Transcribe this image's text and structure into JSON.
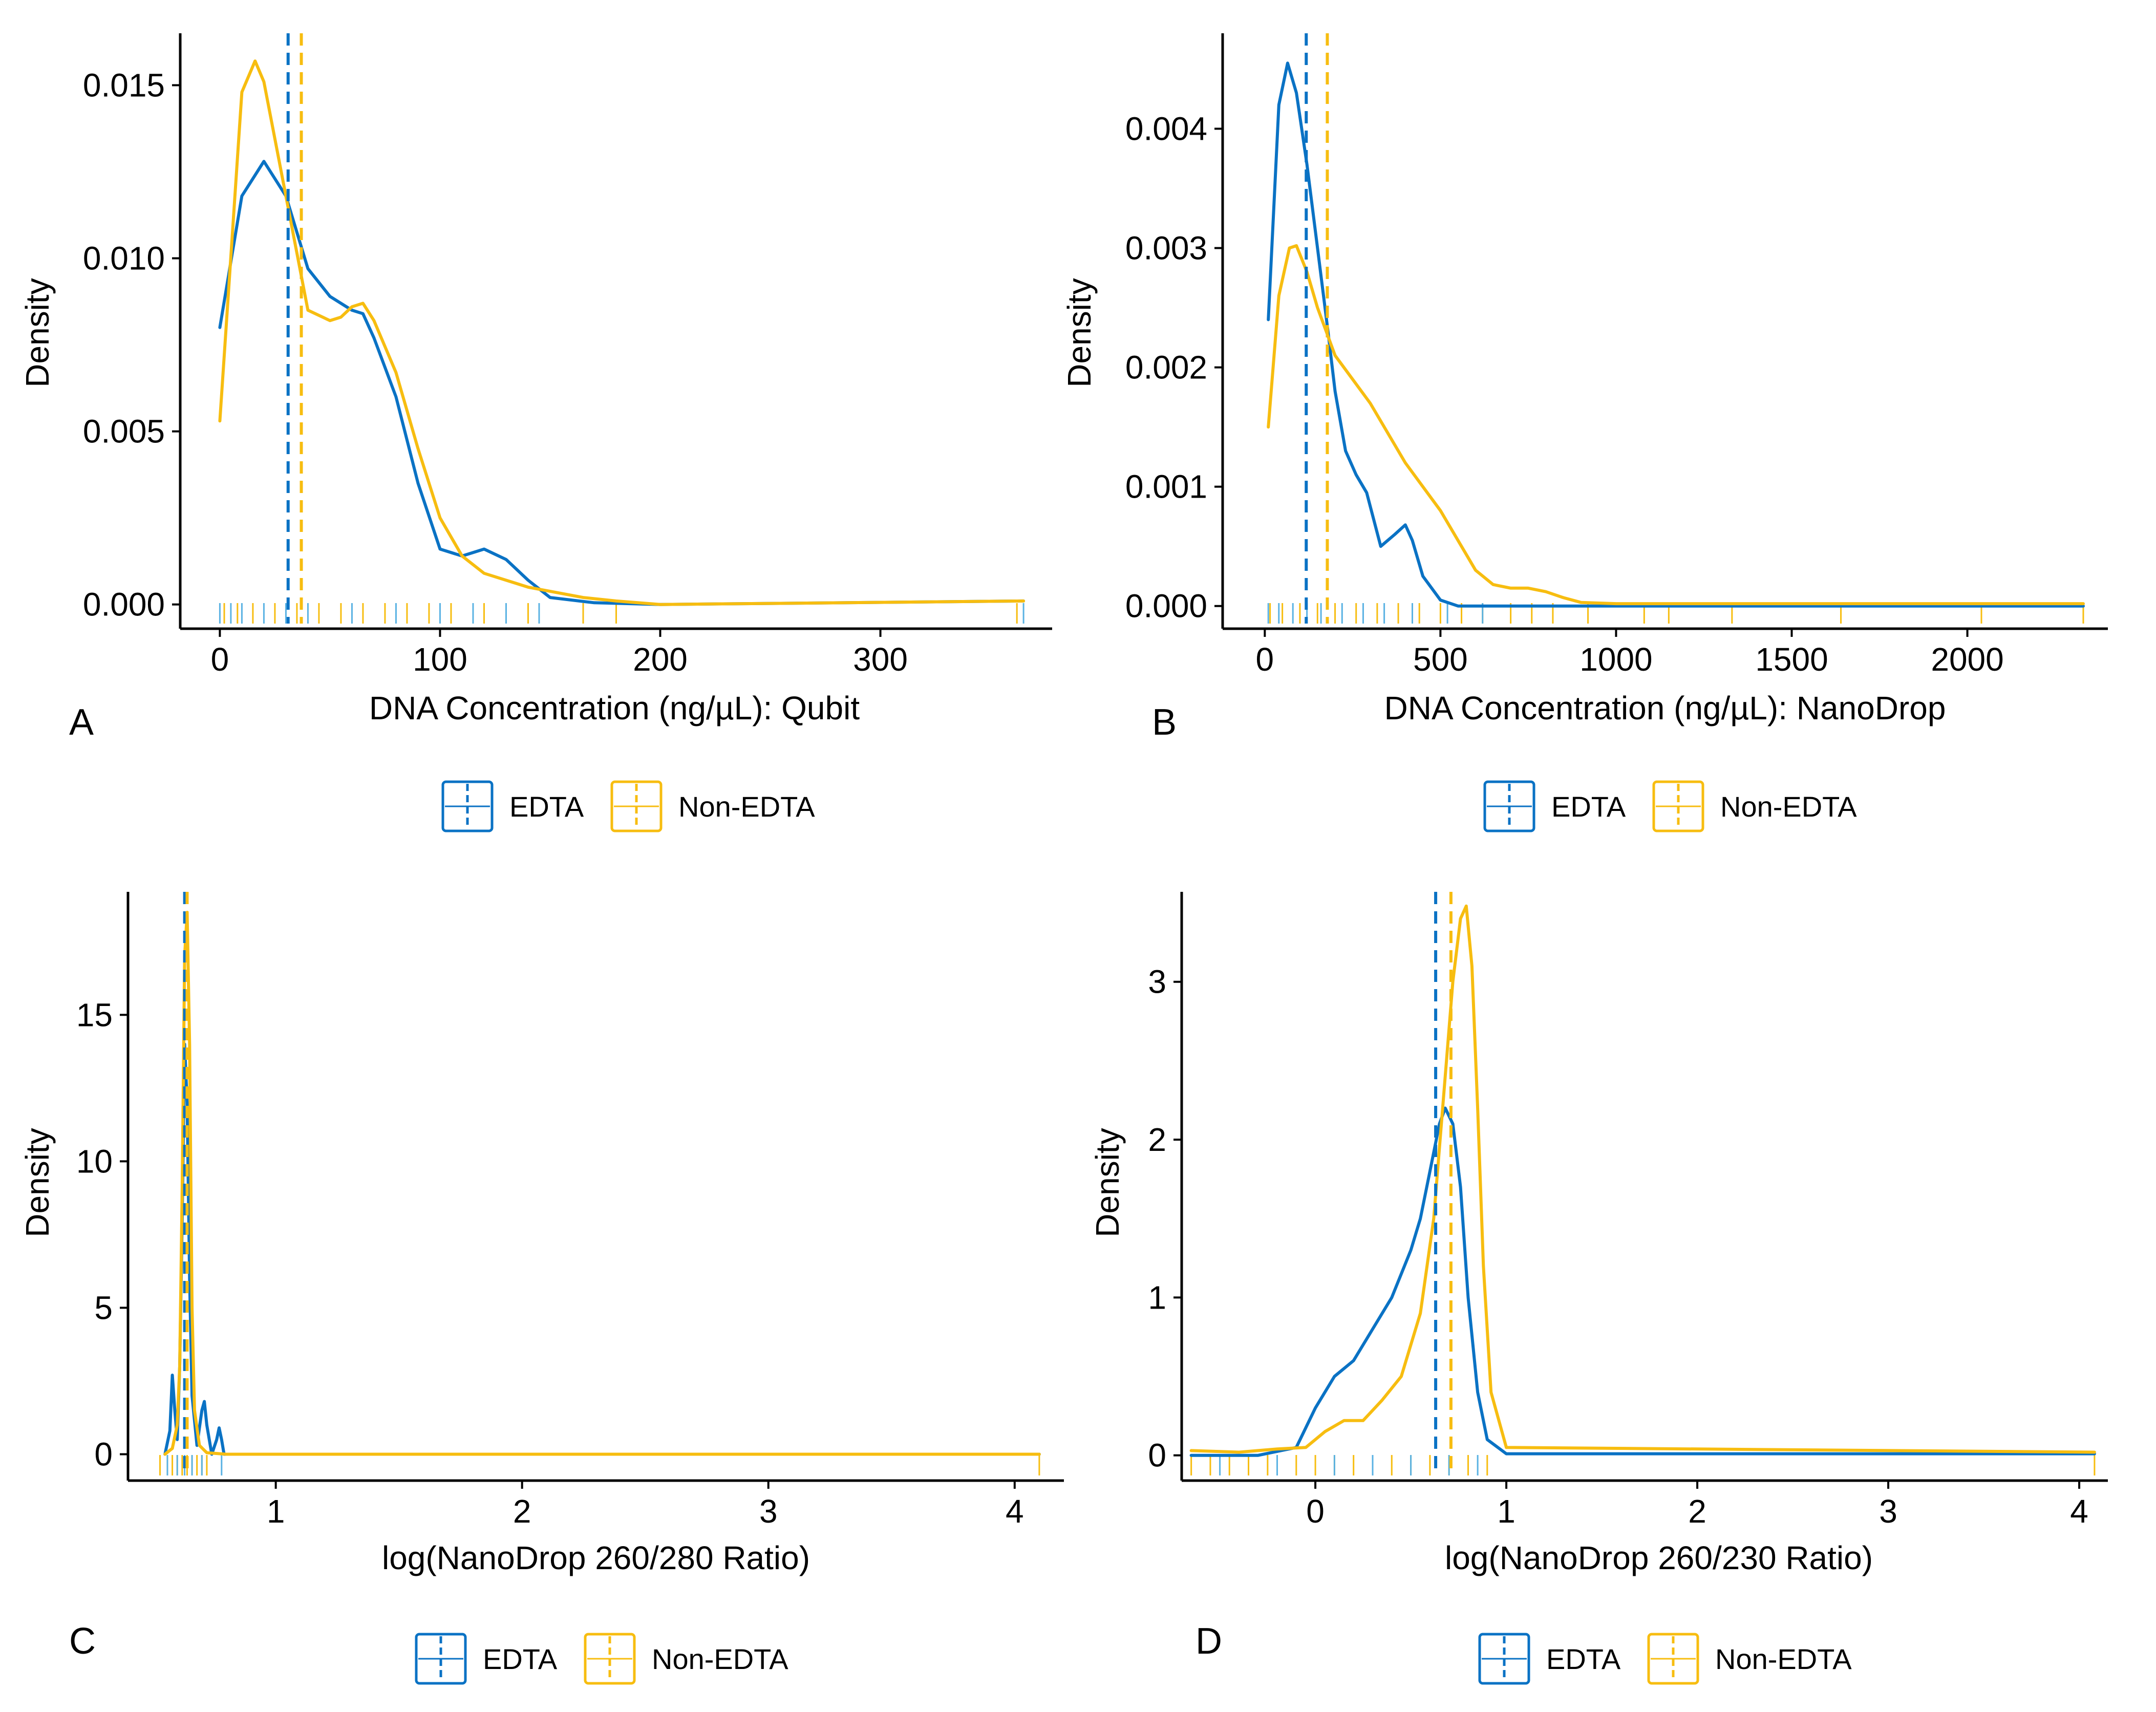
{
  "colors": {
    "edta": "#0a72c4",
    "non_edta": "#f7bd10",
    "edta_light": "#5ab2e3",
    "axis": "#000000"
  },
  "legend": {
    "edta_label": "EDTA",
    "non_edta_label": "Non-EDTA"
  },
  "chart_data": [
    {
      "panel": "A",
      "type": "line",
      "title": "",
      "xlabel": "DNA Concentration (ng/µL): Qubit",
      "ylabel": "Density",
      "xlim": [
        -18,
        378
      ],
      "ylim": [
        -0.0007,
        0.0165
      ],
      "x_ticks": [
        0,
        100,
        200,
        300
      ],
      "x_tick_labels": [
        "0",
        "100",
        "200",
        "300"
      ],
      "y_ticks": [
        0,
        0.005,
        0.01,
        0.015
      ],
      "y_tick_labels": [
        "0.000",
        "0.005",
        "0.010",
        "0.015"
      ],
      "series": [
        {
          "name": "EDTA",
          "color": "#0a72c4",
          "x": [
            0,
            10,
            20,
            30,
            40,
            50,
            60,
            65,
            70,
            80,
            90,
            100,
            110,
            120,
            130,
            140,
            150,
            170,
            200,
            365
          ],
          "y": [
            0.008,
            0.0118,
            0.0128,
            0.0118,
            0.0097,
            0.0089,
            0.0085,
            0.0084,
            0.0077,
            0.006,
            0.0035,
            0.0016,
            0.0014,
            0.0016,
            0.0013,
            0.0007,
            0.0002,
            5e-05,
            0.0,
            0.0001
          ]
        },
        {
          "name": "Non-EDTA",
          "color": "#f7bd10",
          "x": [
            0,
            10,
            16,
            20,
            30,
            40,
            50,
            55,
            60,
            65,
            70,
            80,
            90,
            100,
            110,
            120,
            140,
            165,
            180,
            200,
            365
          ],
          "y": [
            0.0053,
            0.0148,
            0.0157,
            0.0151,
            0.0118,
            0.0085,
            0.0082,
            0.0083,
            0.0086,
            0.0087,
            0.0082,
            0.0067,
            0.0045,
            0.0025,
            0.0014,
            0.0009,
            0.0005,
            0.0002,
            0.0001,
            0.0,
            0.0001
          ]
        }
      ],
      "mean_lines": [
        {
          "name": "EDTA",
          "x": 31
        },
        {
          "name": "Non-EDTA",
          "x": 37
        }
      ],
      "rug": {
        "edta_x": [
          0,
          5,
          10,
          20,
          30,
          40,
          60,
          80,
          100,
          115,
          130,
          145,
          365
        ],
        "non_edta_x": [
          2,
          8,
          15,
          25,
          35,
          45,
          55,
          65,
          75,
          85,
          95,
          105,
          120,
          140,
          165,
          180,
          362
        ]
      }
    },
    {
      "panel": "B",
      "type": "line",
      "title": "",
      "xlabel": "DNA Concentration (ng/µL): NanoDrop",
      "ylabel": "Density",
      "xlim": [
        -120,
        2400
      ],
      "ylim": [
        -0.00019,
        0.0048
      ],
      "x_ticks": [
        0,
        500,
        1000,
        1500,
        2000
      ],
      "x_tick_labels": [
        "0",
        "500",
        "1000",
        "1500",
        "2000"
      ],
      "y_ticks": [
        0,
        0.001,
        0.002,
        0.003,
        0.004
      ],
      "y_tick_labels": [
        "0.000",
        "0.001",
        "0.002",
        "0.003",
        "0.004"
      ],
      "series": [
        {
          "name": "EDTA",
          "color": "#0a72c4",
          "x": [
            10,
            40,
            65,
            90,
            120,
            150,
            180,
            200,
            230,
            260,
            290,
            330,
            370,
            400,
            420,
            450,
            500,
            550,
            600,
            2330
          ],
          "y": [
            0.0024,
            0.0042,
            0.00455,
            0.0043,
            0.0037,
            0.003,
            0.0023,
            0.0018,
            0.0013,
            0.0011,
            0.00095,
            0.0005,
            0.0006,
            0.00068,
            0.00055,
            0.00025,
            5e-05,
            0.0,
            0.0,
            0.0
          ]
        },
        {
          "name": "Non-EDTA",
          "color": "#f7bd10",
          "x": [
            10,
            40,
            70,
            90,
            120,
            150,
            200,
            300,
            400,
            500,
            600,
            650,
            700,
            750,
            800,
            850,
            900,
            1000,
            1500,
            2330
          ],
          "y": [
            0.0015,
            0.0026,
            0.003,
            0.00302,
            0.0028,
            0.0025,
            0.0021,
            0.0017,
            0.0012,
            0.0008,
            0.0003,
            0.00018,
            0.00015,
            0.00015,
            0.00012,
            7e-05,
            3e-05,
            2e-05,
            2e-05,
            2e-05
          ]
        }
      ],
      "mean_lines": [
        {
          "name": "EDTA",
          "x": 118
        },
        {
          "name": "Non-EDTA",
          "x": 178
        }
      ],
      "rug": {
        "edta_x": [
          10,
          40,
          80,
          120,
          160,
          220,
          280,
          340,
          420,
          520,
          620
        ],
        "non_edta_x": [
          15,
          50,
          100,
          150,
          200,
          260,
          320,
          380,
          440,
          500,
          560,
          620,
          700,
          760,
          820,
          920,
          1080,
          1150,
          1330,
          1640,
          2040,
          2330
        ]
      }
    },
    {
      "panel": "C",
      "type": "line",
      "title": "",
      "xlabel": "log(NanoDrop 260/280 Ratio)",
      "ylabel": "Density",
      "xlim": [
        0.4,
        4.2
      ],
      "ylim": [
        -0.9,
        19.2
      ],
      "x_ticks": [
        1,
        2,
        3,
        4
      ],
      "x_tick_labels": [
        "1",
        "2",
        "3",
        "4"
      ],
      "y_ticks": [
        0,
        5,
        10,
        15
      ],
      "y_tick_labels": [
        "0",
        "5",
        "10",
        "15"
      ],
      "series": [
        {
          "name": "EDTA",
          "color": "#0a72c4",
          "x": [
            0.55,
            0.57,
            0.58,
            0.59,
            0.6,
            0.61,
            0.62,
            0.63,
            0.64,
            0.65,
            0.66,
            0.68,
            0.7,
            0.71,
            0.72,
            0.74,
            0.76,
            0.77,
            0.78,
            0.79,
            0.8,
            4.1
          ],
          "y": [
            0.0,
            0.8,
            2.7,
            1.5,
            0.5,
            3.0,
            8.0,
            14.0,
            12.0,
            6.0,
            2.0,
            0.3,
            1.5,
            1.8,
            1.0,
            0.0,
            0.5,
            0.9,
            0.5,
            0.0,
            0.0,
            0.0
          ]
        },
        {
          "name": "Non-EDTA",
          "color": "#f7bd10",
          "x": [
            0.55,
            0.58,
            0.6,
            0.61,
            0.62,
            0.63,
            0.64,
            0.65,
            0.66,
            0.67,
            0.69,
            0.72,
            0.8,
            4.1
          ],
          "y": [
            0.0,
            0.2,
            1.0,
            3.0,
            9.0,
            17.0,
            18.5,
            14.0,
            5.0,
            1.5,
            0.3,
            0.05,
            0.0,
            0.0
          ]
        }
      ],
      "mean_lines": [
        {
          "name": "EDTA",
          "x": 0.63
        },
        {
          "name": "Non-EDTA",
          "x": 0.64
        }
      ],
      "rug": {
        "edta_x": [
          0.56,
          0.6,
          0.63,
          0.66,
          0.7,
          0.78
        ],
        "non_edta_x": [
          0.53,
          0.56,
          0.58,
          0.6,
          0.62,
          0.64,
          0.66,
          0.68,
          0.7,
          0.72,
          4.1
        ]
      }
    },
    {
      "panel": "D",
      "type": "line",
      "title": "",
      "xlabel": "log(NanoDrop 260/230 Ratio)",
      "ylabel": "Density",
      "xlim": [
        -0.7,
        4.15
      ],
      "ylim": [
        -0.16,
        3.57
      ],
      "x_ticks": [
        0,
        1,
        2,
        3,
        4
      ],
      "x_tick_labels": [
        "0",
        "1",
        "2",
        "3",
        "4"
      ],
      "y_ticks": [
        0,
        1,
        2,
        3
      ],
      "y_tick_labels": [
        "0",
        "1",
        "2",
        "3"
      ],
      "series": [
        {
          "name": "EDTA",
          "color": "#0a72c4",
          "x": [
            -0.65,
            -0.3,
            -0.1,
            0.0,
            0.1,
            0.2,
            0.3,
            0.4,
            0.5,
            0.55,
            0.6,
            0.65,
            0.68,
            0.72,
            0.76,
            0.8,
            0.85,
            0.9,
            1.0,
            4.08
          ],
          "y": [
            0.0,
            0.0,
            0.05,
            0.3,
            0.5,
            0.6,
            0.8,
            1.0,
            1.3,
            1.5,
            1.8,
            2.1,
            2.2,
            2.1,
            1.7,
            1.0,
            0.4,
            0.1,
            0.01,
            0.01
          ]
        },
        {
          "name": "Non-EDTA",
          "color": "#f7bd10",
          "x": [
            -0.65,
            -0.4,
            -0.2,
            -0.05,
            0.05,
            0.15,
            0.25,
            0.35,
            0.45,
            0.55,
            0.62,
            0.68,
            0.72,
            0.76,
            0.79,
            0.82,
            0.85,
            0.88,
            0.92,
            1.0,
            4.08
          ],
          "y": [
            0.03,
            0.02,
            0.04,
            0.05,
            0.15,
            0.22,
            0.22,
            0.35,
            0.5,
            0.9,
            1.5,
            2.4,
            3.0,
            3.4,
            3.48,
            3.1,
            2.2,
            1.2,
            0.4,
            0.05,
            0.02
          ]
        }
      ],
      "mean_lines": [
        {
          "name": "EDTA",
          "x": 0.63
        },
        {
          "name": "Non-EDTA",
          "x": 0.71
        }
      ],
      "rug": {
        "edta_x": [
          -0.5,
          -0.2,
          0.1,
          0.3,
          0.5,
          0.7,
          0.85
        ],
        "non_edta_x": [
          -0.65,
          -0.55,
          -0.45,
          -0.35,
          -0.25,
          -0.1,
          0.0,
          0.1,
          0.2,
          0.3,
          0.4,
          0.5,
          0.6,
          0.7,
          0.8,
          0.9,
          4.08
        ]
      }
    }
  ]
}
